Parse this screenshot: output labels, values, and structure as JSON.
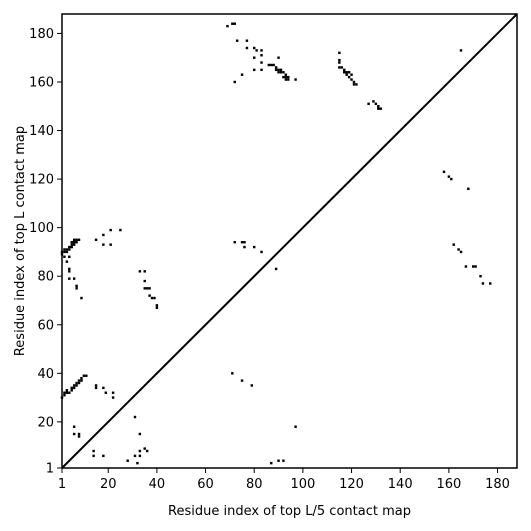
{
  "chart_data": {
    "type": "heatmap",
    "xlabel": "Residue index of top L/5 contact map",
    "ylabel": "Residue index of top L contact map",
    "xlim": [
      1,
      188
    ],
    "ylim": [
      1,
      188
    ],
    "x_ticks": [
      1,
      20,
      40,
      60,
      80,
      100,
      120,
      140,
      160,
      180
    ],
    "y_ticks": [
      1,
      20,
      40,
      60,
      80,
      100,
      120,
      140,
      160,
      180
    ],
    "diagonal": true,
    "upper_triangle_contacts": [
      [
        1,
        90
      ],
      [
        1,
        89
      ],
      [
        2,
        90
      ],
      [
        2,
        88
      ],
      [
        2,
        91
      ],
      [
        3,
        91
      ],
      [
        3,
        90
      ],
      [
        3,
        86
      ],
      [
        4,
        92
      ],
      [
        4,
        91
      ],
      [
        4,
        88
      ],
      [
        4,
        82
      ],
      [
        4,
        83
      ],
      [
        4,
        79
      ],
      [
        5,
        93
      ],
      [
        5,
        92
      ],
      [
        5,
        94
      ],
      [
        6,
        93
      ],
      [
        6,
        94
      ],
      [
        6,
        95
      ],
      [
        6,
        79
      ],
      [
        7,
        95
      ],
      [
        7,
        94
      ],
      [
        7,
        76
      ],
      [
        7,
        75
      ],
      [
        8,
        95
      ],
      [
        9,
        71
      ],
      [
        15,
        95
      ],
      [
        18,
        93
      ],
      [
        18,
        97
      ],
      [
        21,
        93
      ],
      [
        21,
        99
      ],
      [
        25,
        99
      ],
      [
        33,
        82
      ],
      [
        35,
        82
      ],
      [
        35,
        78
      ],
      [
        35,
        75
      ],
      [
        36,
        75
      ],
      [
        37,
        75
      ],
      [
        37,
        72
      ],
      [
        38,
        71
      ],
      [
        39,
        71
      ],
      [
        40,
        68
      ],
      [
        40,
        67
      ],
      [
        69,
        183
      ],
      [
        71,
        184
      ],
      [
        72,
        184
      ],
      [
        73,
        177
      ],
      [
        72,
        160
      ],
      [
        75,
        163
      ],
      [
        77,
        177
      ],
      [
        77,
        174
      ],
      [
        80,
        174
      ],
      [
        81,
        173
      ],
      [
        80,
        170
      ],
      [
        80,
        165
      ],
      [
        83,
        173
      ],
      [
        83,
        171
      ],
      [
        83,
        168
      ],
      [
        83,
        165
      ],
      [
        86,
        167
      ],
      [
        87,
        167
      ],
      [
        88,
        167
      ],
      [
        89,
        166
      ],
      [
        89,
        165
      ],
      [
        90,
        165
      ],
      [
        90,
        164
      ],
      [
        91,
        165
      ],
      [
        91,
        164
      ],
      [
        92,
        164
      ],
      [
        92,
        162
      ],
      [
        93,
        163
      ],
      [
        93,
        162
      ],
      [
        94,
        162
      ],
      [
        94,
        161
      ],
      [
        93,
        161
      ],
      [
        97,
        161
      ],
      [
        90,
        170
      ],
      [
        115,
        172
      ],
      [
        115,
        169
      ],
      [
        115,
        168
      ],
      [
        115,
        166
      ],
      [
        116,
        166
      ],
      [
        117,
        165
      ],
      [
        117,
        164
      ],
      [
        118,
        164
      ],
      [
        118,
        163
      ],
      [
        119,
        164
      ],
      [
        119,
        162
      ],
      [
        120,
        163
      ],
      [
        120,
        161
      ],
      [
        121,
        160
      ],
      [
        121,
        159
      ],
      [
        122,
        159
      ],
      [
        127,
        151
      ],
      [
        129,
        152
      ],
      [
        130,
        151
      ],
      [
        131,
        150
      ],
      [
        131,
        149
      ],
      [
        132,
        149
      ],
      [
        165,
        173
      ]
    ],
    "lower_triangle_contacts": [
      [
        1,
        30
      ],
      [
        2,
        31
      ],
      [
        2,
        32
      ],
      [
        3,
        32
      ],
      [
        3,
        33
      ],
      [
        4,
        32
      ],
      [
        5,
        33
      ],
      [
        5,
        34
      ],
      [
        6,
        34
      ],
      [
        6,
        35
      ],
      [
        7,
        35
      ],
      [
        7,
        36
      ],
      [
        8,
        36
      ],
      [
        8,
        37
      ],
      [
        9,
        37
      ],
      [
        9,
        38
      ],
      [
        10,
        39
      ],
      [
        11,
        39
      ],
      [
        6,
        18
      ],
      [
        6,
        15
      ],
      [
        8,
        15
      ],
      [
        8,
        14
      ],
      [
        15,
        35
      ],
      [
        15,
        34
      ],
      [
        18,
        34
      ],
      [
        19,
        32
      ],
      [
        22,
        32
      ],
      [
        22,
        30
      ],
      [
        14,
        8
      ],
      [
        14,
        6
      ],
      [
        18,
        6
      ],
      [
        28,
        4
      ],
      [
        31,
        22
      ],
      [
        31,
        6
      ],
      [
        32,
        3
      ],
      [
        33,
        15
      ],
      [
        33,
        8
      ],
      [
        33,
        6
      ],
      [
        35,
        9
      ],
      [
        36,
        8
      ],
      [
        71,
        40
      ],
      [
        75,
        37
      ],
      [
        79,
        35
      ],
      [
        83,
        90
      ],
      [
        89,
        83
      ],
      [
        72,
        94
      ],
      [
        75,
        94
      ],
      [
        76,
        94
      ],
      [
        76,
        92
      ],
      [
        80,
        92
      ],
      [
        87,
        3
      ],
      [
        90,
        4
      ],
      [
        92,
        4
      ],
      [
        97,
        18
      ],
      [
        158,
        123
      ],
      [
        160,
        121
      ],
      [
        161,
        120
      ],
      [
        162,
        93
      ],
      [
        164,
        91
      ],
      [
        165,
        90
      ],
      [
        167,
        84
      ],
      [
        168,
        116
      ],
      [
        170,
        84
      ],
      [
        171,
        84
      ],
      [
        173,
        80
      ],
      [
        174,
        77
      ],
      [
        177,
        77
      ]
    ]
  }
}
